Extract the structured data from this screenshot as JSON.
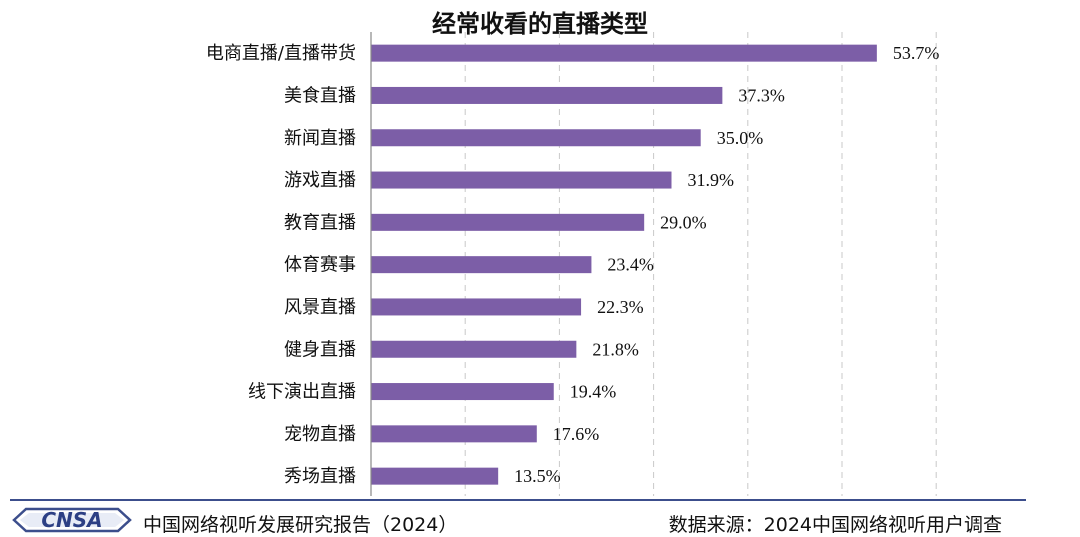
{
  "chart_data": {
    "type": "bar",
    "orientation": "horizontal",
    "title": "经常收看的直播类型",
    "categories": [
      "电商直播/直播带货",
      "美食直播",
      "新闻直播",
      "游戏直播",
      "教育直播",
      "体育赛事",
      "风景直播",
      "健身直播",
      "线下演出直播",
      "宠物直播",
      "秀场直播"
    ],
    "values": [
      53.7,
      37.3,
      35.0,
      31.9,
      29.0,
      23.4,
      22.3,
      21.8,
      19.4,
      17.6,
      13.5
    ],
    "value_labels": [
      "53.7%",
      "37.3%",
      "35.0%",
      "31.9%",
      "29.0%",
      "23.4%",
      "22.3%",
      "21.8%",
      "19.4%",
      "17.6%",
      "13.5%"
    ],
    "xlim": [
      0,
      60
    ],
    "grid": "vertical dashed",
    "bar_color": "#7c5ea7"
  },
  "footer": {
    "logo_text": "CNSA",
    "left_text": "中国网络视听发展研究报告（2024）",
    "right_text": "数据来源：2024中国网络视听用户调查"
  }
}
